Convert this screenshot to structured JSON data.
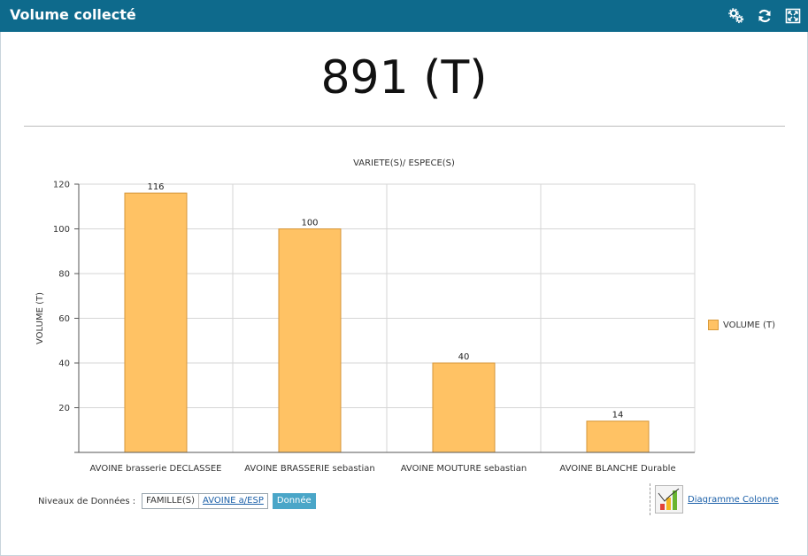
{
  "window": {
    "title": "Volume collecté"
  },
  "toolbar": {
    "icons": [
      "settings-cogs-icon",
      "refresh-icon",
      "fullscreen-icon"
    ]
  },
  "kpi": {
    "value": "891 (T)"
  },
  "chart_data": {
    "type": "bar",
    "title": "VARIETE(S)/ ESPECE(S)",
    "xlabel": "",
    "ylabel": "VOLUME (T)",
    "ylim": [
      0,
      120
    ],
    "yticks": [
      "20",
      "40",
      "60",
      "80",
      "100",
      "120"
    ],
    "categories": [
      "AVOINE brasserie DECLASSEE",
      "AVOINE BRASSERIE sebastian",
      "AVOINE MOUTURE sebastian",
      "AVOINE BLANCHE Durable"
    ],
    "series": [
      {
        "name": "VOLUME (T)",
        "values": [
          116,
          100,
          40,
          14
        ],
        "color": "#ffc264"
      }
    ],
    "data_labels": [
      "116",
      "100",
      "40",
      "14"
    ],
    "grid": true,
    "legend_position": "right"
  },
  "levels": {
    "label": "Niveaux de Données :",
    "items": [
      "FAMILLE(S)",
      "AVOINE a/ESP"
    ],
    "active": "Donnée"
  },
  "chart_switch": {
    "label": "Diagramme Colonne",
    "icon": "column-chart-icon"
  }
}
